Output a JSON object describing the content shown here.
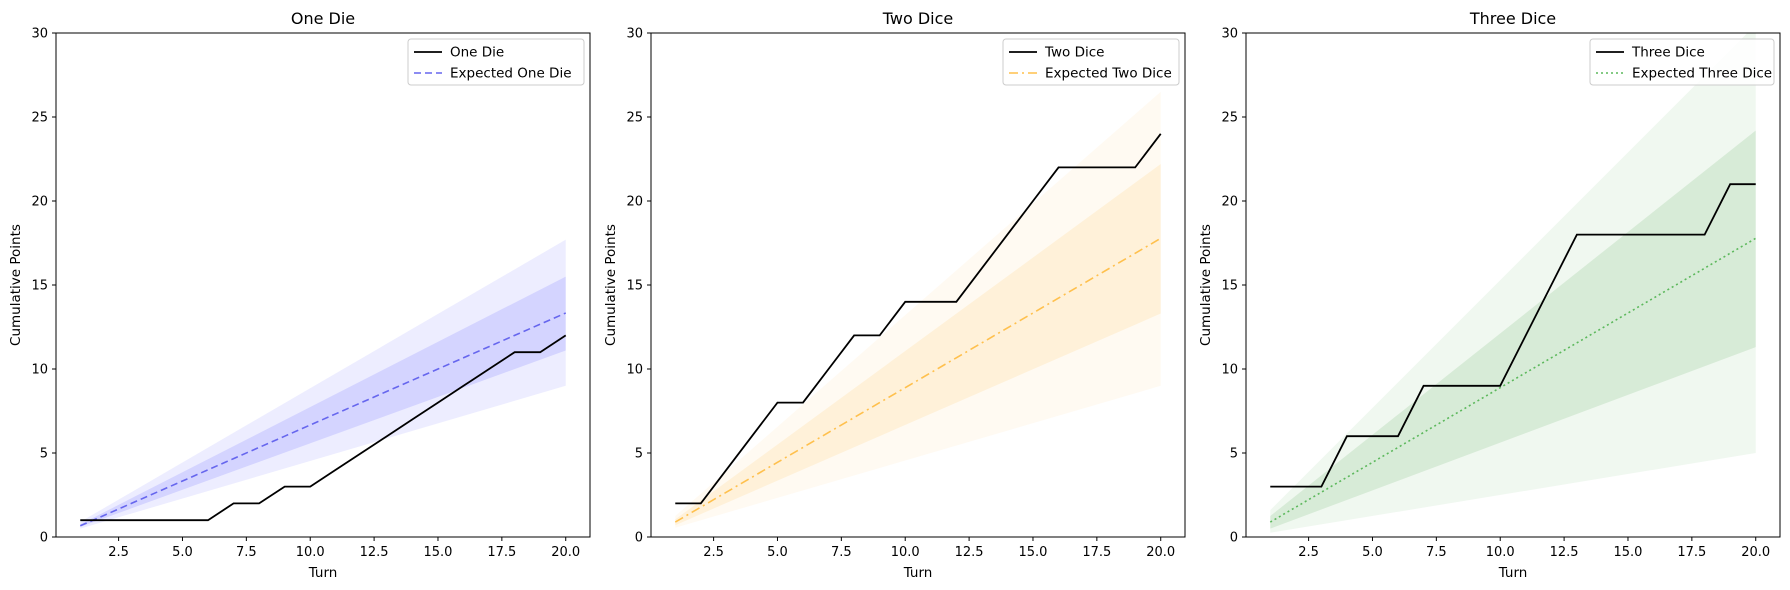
{
  "chart_data": [
    {
      "type": "line",
      "title": "One Die",
      "xlabel": "Turn",
      "ylabel": "Cumulative Points",
      "xlim": [
        0.05,
        20.95
      ],
      "ylim": [
        0,
        30
      ],
      "xticks": [
        2.5,
        5.0,
        7.5,
        10.0,
        12.5,
        15.0,
        17.5,
        20.0
      ],
      "xtick_labels": [
        "2.5",
        "5.0",
        "7.5",
        "10.0",
        "12.5",
        "15.0",
        "17.5",
        "20.0"
      ],
      "yticks": [
        0,
        5,
        10,
        15,
        20,
        25,
        30
      ],
      "ytick_labels": [
        "0",
        "5",
        "10",
        "15",
        "20",
        "25",
        "30"
      ],
      "legend_position": "top-right",
      "x": [
        1,
        2,
        3,
        4,
        5,
        6,
        7,
        8,
        9,
        10,
        11,
        12,
        13,
        14,
        15,
        16,
        17,
        18,
        19,
        20
      ],
      "series": [
        {
          "name": "One Die",
          "style": "solid",
          "color": "#000000",
          "values": [
            1,
            1,
            1,
            1,
            1,
            1,
            2,
            2,
            3,
            3,
            4,
            5,
            6,
            7,
            8,
            9,
            10,
            11,
            11,
            12
          ]
        },
        {
          "name": "Expected One Die",
          "style": "dashed",
          "color": "#6666ee",
          "values": [
            0.667,
            1.333,
            2.0,
            2.667,
            3.333,
            4.0,
            4.667,
            5.333,
            6.0,
            6.667,
            7.333,
            8.0,
            8.667,
            9.333,
            10.0,
            10.667,
            11.333,
            12.0,
            12.667,
            13.333
          ]
        }
      ],
      "bands": [
        {
          "color": "#0000ff",
          "opacity": 0.07,
          "lower_start": 0.5,
          "upper_start": 0.9,
          "lower_end": 9.0,
          "upper_end": 17.7
        },
        {
          "color": "#0000ff",
          "opacity": 0.1,
          "lower_start": 0.6,
          "upper_start": 0.75,
          "lower_end": 11.1,
          "upper_end": 15.5
        }
      ]
    },
    {
      "type": "line",
      "title": "Two Dice",
      "xlabel": "Turn",
      "ylabel": "Cumulative Points",
      "xlim": [
        0.05,
        20.95
      ],
      "ylim": [
        0,
        30
      ],
      "xticks": [
        2.5,
        5.0,
        7.5,
        10.0,
        12.5,
        15.0,
        17.5,
        20.0
      ],
      "xtick_labels": [
        "2.5",
        "5.0",
        "7.5",
        "10.0",
        "12.5",
        "15.0",
        "17.5",
        "20.0"
      ],
      "yticks": [
        0,
        5,
        10,
        15,
        20,
        25,
        30
      ],
      "ytick_labels": [
        "0",
        "5",
        "10",
        "15",
        "20",
        "25",
        "30"
      ],
      "legend_position": "top-right",
      "x": [
        1,
        2,
        3,
        4,
        5,
        6,
        7,
        8,
        9,
        10,
        11,
        12,
        13,
        14,
        15,
        16,
        17,
        18,
        19,
        20
      ],
      "series": [
        {
          "name": "Two Dice",
          "style": "solid",
          "color": "#000000",
          "values": [
            2,
            2,
            4,
            6,
            8,
            8,
            10,
            12,
            12,
            14,
            14,
            14,
            16,
            18,
            20,
            22,
            22,
            22,
            22,
            24
          ]
        },
        {
          "name": "Expected Two Dice",
          "style": "dashdot",
          "color": "#ffc04d",
          "values": [
            0.889,
            1.778,
            2.667,
            3.556,
            4.444,
            5.333,
            6.222,
            7.111,
            8.0,
            8.889,
            9.778,
            10.667,
            11.556,
            12.444,
            13.333,
            14.222,
            15.111,
            16.0,
            16.889,
            17.778
          ]
        }
      ],
      "bands": [
        {
          "color": "#ffa500",
          "opacity": 0.05,
          "lower_start": 0.55,
          "upper_start": 1.25,
          "lower_end": 9.0,
          "upper_end": 26.5
        },
        {
          "color": "#ffa500",
          "opacity": 0.1,
          "lower_start": 0.7,
          "upper_start": 1.05,
          "lower_end": 13.3,
          "upper_end": 22.2
        }
      ]
    },
    {
      "type": "line",
      "title": "Three Dice",
      "xlabel": "Turn",
      "ylabel": "Cumulative Points",
      "xlim": [
        0.05,
        20.95
      ],
      "ylim": [
        0,
        30
      ],
      "xticks": [
        2.5,
        5.0,
        7.5,
        10.0,
        12.5,
        15.0,
        17.5,
        20.0
      ],
      "xtick_labels": [
        "2.5",
        "5.0",
        "7.5",
        "10.0",
        "12.5",
        "15.0",
        "17.5",
        "20.0"
      ],
      "yticks": [
        0,
        5,
        10,
        15,
        20,
        25,
        30
      ],
      "ytick_labels": [
        "0",
        "5",
        "10",
        "15",
        "20",
        "25",
        "30"
      ],
      "legend_position": "top-right",
      "x": [
        1,
        2,
        3,
        4,
        5,
        6,
        7,
        8,
        9,
        10,
        11,
        12,
        13,
        14,
        15,
        16,
        17,
        18,
        19,
        20
      ],
      "series": [
        {
          "name": "Three Dice",
          "style": "solid",
          "color": "#000000",
          "values": [
            3,
            3,
            3,
            6,
            6,
            6,
            9,
            9,
            9,
            9,
            12,
            15,
            18,
            18,
            18,
            18,
            18,
            18,
            21,
            21
          ]
        },
        {
          "name": "Expected Three Dice",
          "style": "dotted",
          "color": "#5cb85c",
          "values": [
            0.889,
            1.778,
            2.667,
            3.556,
            4.444,
            5.333,
            6.222,
            7.111,
            8.0,
            8.889,
            9.778,
            10.667,
            11.556,
            12.444,
            13.333,
            14.222,
            15.111,
            16.0,
            16.889,
            17.778
          ]
        }
      ],
      "bands": [
        {
          "color": "#008000",
          "opacity": 0.06,
          "lower_start": 0.25,
          "upper_start": 1.6,
          "lower_end": 5.0,
          "upper_end": 30.5
        },
        {
          "color": "#008000",
          "opacity": 0.1,
          "lower_start": 0.5,
          "upper_start": 1.25,
          "lower_end": 11.3,
          "upper_end": 24.2
        }
      ]
    }
  ]
}
